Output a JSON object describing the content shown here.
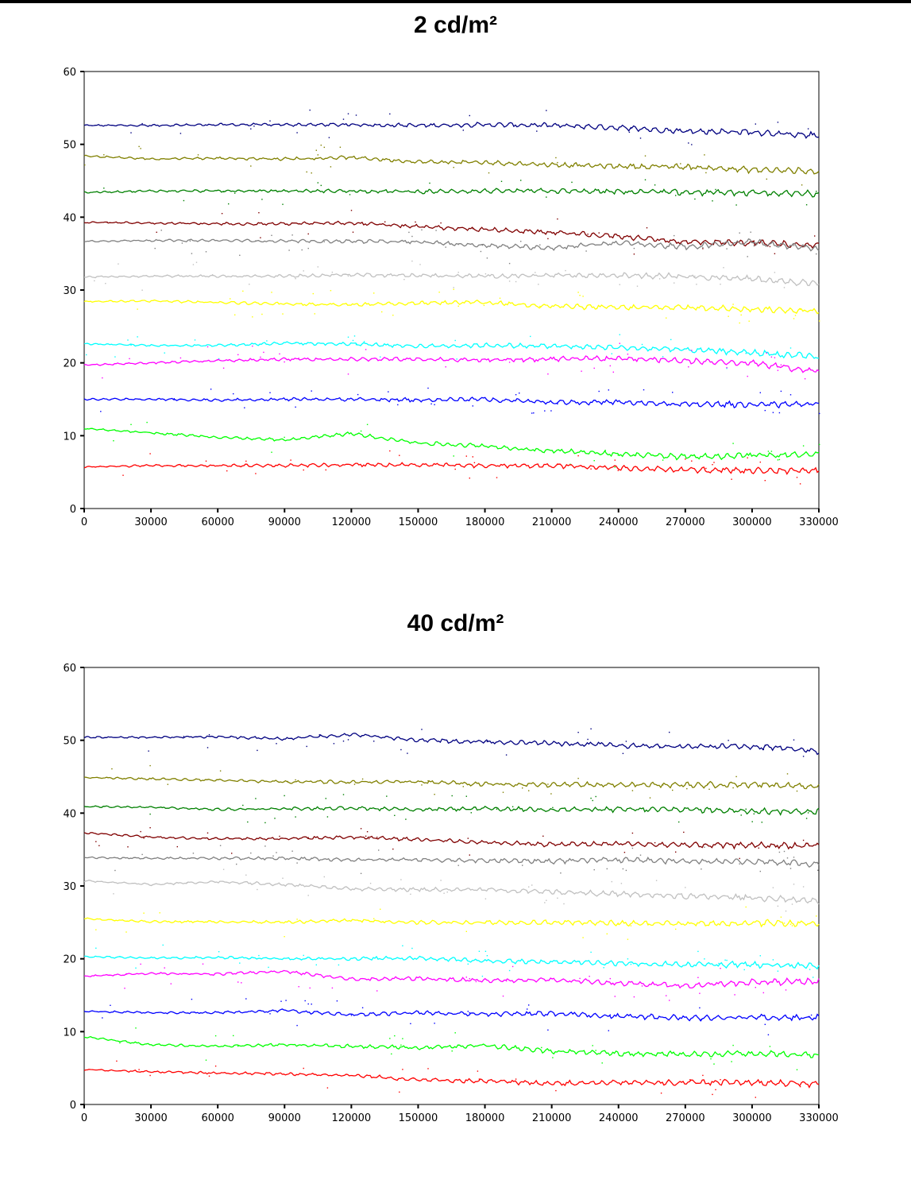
{
  "chart_data": [
    {
      "type": "line",
      "title": "2 cd/m²",
      "xlabel": "",
      "ylabel": "",
      "xlim": [
        0,
        330000
      ],
      "ylim": [
        0,
        60
      ],
      "xticks": [
        "0",
        "30000",
        "60000",
        "90000",
        "120000",
        "150000",
        "180000",
        "210000",
        "240000",
        "270000",
        "300000",
        "330000"
      ],
      "yticks": [
        "0",
        "10",
        "20",
        "30",
        "40",
        "50",
        "60"
      ],
      "grid": false,
      "x": [
        0,
        30000,
        60000,
        90000,
        120000,
        150000,
        180000,
        210000,
        240000,
        270000,
        300000,
        330000
      ],
      "series": [
        {
          "color": "#000080",
          "values": [
            52.6,
            52.6,
            52.7,
            52.7,
            52.7,
            52.6,
            52.7,
            52.6,
            52.3,
            51.8,
            51.7,
            51.2
          ]
        },
        {
          "color": "#808000",
          "values": [
            48.4,
            48.0,
            48.1,
            48.0,
            48.2,
            47.6,
            47.5,
            47.2,
            47.0,
            46.9,
            46.5,
            46.3
          ]
        },
        {
          "color": "#008000",
          "values": [
            43.4,
            43.6,
            43.6,
            43.6,
            43.6,
            43.5,
            43.6,
            43.6,
            43.5,
            43.4,
            43.3,
            43.2
          ]
        },
        {
          "color": "#800000",
          "values": [
            39.3,
            39.2,
            39.1,
            39.1,
            39.2,
            38.7,
            38.3,
            37.9,
            37.4,
            36.6,
            36.5,
            36.1
          ]
        },
        {
          "color": "#808080",
          "values": [
            36.7,
            36.8,
            36.8,
            36.7,
            36.7,
            36.6,
            36.1,
            35.8,
            36.5,
            35.9,
            36.6,
            35.6
          ]
        },
        {
          "color": "#c0c0c0",
          "values": [
            31.8,
            31.9,
            31.9,
            31.9,
            32.1,
            32.0,
            31.9,
            32.0,
            32.0,
            31.9,
            31.5,
            30.9
          ]
        },
        {
          "color": "#ffff00",
          "values": [
            28.4,
            28.5,
            28.3,
            28.1,
            28.0,
            28.2,
            28.3,
            27.8,
            27.6,
            27.6,
            27.4,
            27.1
          ]
        },
        {
          "color": "#00ffff",
          "values": [
            22.6,
            22.4,
            22.4,
            22.7,
            22.6,
            22.3,
            22.4,
            22.3,
            22.1,
            21.8,
            21.4,
            20.8
          ]
        },
        {
          "color": "#ff00ff",
          "values": [
            19.7,
            20.0,
            20.3,
            20.5,
            20.5,
            20.5,
            20.4,
            20.5,
            20.6,
            20.3,
            20.0,
            18.8
          ]
        },
        {
          "color": "#0000ff",
          "values": [
            15.0,
            15.0,
            14.9,
            15.0,
            15.0,
            14.9,
            15.0,
            14.6,
            14.6,
            14.3,
            14.3,
            14.3
          ]
        },
        {
          "color": "#00ff00",
          "values": [
            11.0,
            10.4,
            9.8,
            9.4,
            10.3,
            9.0,
            8.6,
            7.9,
            7.5,
            7.1,
            7.3,
            7.5
          ]
        },
        {
          "color": "#ff0000",
          "values": [
            5.7,
            5.9,
            5.9,
            5.9,
            6.0,
            6.0,
            5.9,
            5.9,
            5.6,
            5.3,
            5.2,
            5.2
          ]
        }
      ]
    },
    {
      "type": "line",
      "title": "40 cd/m²",
      "xlabel": "",
      "ylabel": "",
      "xlim": [
        0,
        330000
      ],
      "ylim": [
        0,
        60
      ],
      "xticks": [
        "0",
        "30000",
        "60000",
        "90000",
        "120000",
        "150000",
        "180000",
        "210000",
        "240000",
        "270000",
        "300000",
        "330000"
      ],
      "yticks": [
        "0",
        "10",
        "20",
        "30",
        "40",
        "50",
        "60"
      ],
      "grid": false,
      "x": [
        0,
        30000,
        60000,
        90000,
        120000,
        150000,
        180000,
        210000,
        240000,
        270000,
        300000,
        330000
      ],
      "series": [
        {
          "color": "#000080",
          "values": [
            50.4,
            50.4,
            50.5,
            50.2,
            50.8,
            50.0,
            49.8,
            49.6,
            49.3,
            49.1,
            49.2,
            48.5
          ]
        },
        {
          "color": "#808000",
          "values": [
            44.9,
            44.7,
            44.5,
            44.3,
            44.3,
            44.3,
            44.0,
            43.9,
            43.9,
            43.9,
            43.9,
            43.7
          ]
        },
        {
          "color": "#008000",
          "values": [
            40.9,
            40.8,
            40.5,
            40.6,
            40.7,
            40.5,
            40.6,
            40.5,
            40.5,
            40.5,
            40.3,
            40.2
          ]
        },
        {
          "color": "#800000",
          "values": [
            37.3,
            36.7,
            36.5,
            36.5,
            36.7,
            36.4,
            36.0,
            35.7,
            35.8,
            35.6,
            35.6,
            35.5
          ]
        },
        {
          "color": "#808080",
          "values": [
            33.9,
            33.8,
            33.8,
            33.8,
            33.6,
            33.6,
            33.5,
            33.4,
            33.6,
            33.4,
            33.4,
            33.0
          ]
        },
        {
          "color": "#c0c0c0",
          "values": [
            30.7,
            30.2,
            30.6,
            30.2,
            29.6,
            29.5,
            29.5,
            29.2,
            28.9,
            28.6,
            28.4,
            27.9
          ]
        },
        {
          "color": "#ffff00",
          "values": [
            25.5,
            25.1,
            25.1,
            25.0,
            25.3,
            25.0,
            25.0,
            25.0,
            24.9,
            24.8,
            24.9,
            24.9
          ]
        },
        {
          "color": "#00ffff",
          "values": [
            20.3,
            20.1,
            20.2,
            20.0,
            20.0,
            20.1,
            19.7,
            19.6,
            19.4,
            19.2,
            19.2,
            19.0
          ]
        },
        {
          "color": "#ff00ff",
          "values": [
            17.6,
            18.0,
            17.9,
            18.3,
            17.2,
            17.3,
            17.0,
            17.1,
            16.7,
            16.3,
            16.8,
            16.9
          ]
        },
        {
          "color": "#0000ff",
          "values": [
            12.8,
            12.6,
            12.6,
            12.9,
            12.3,
            12.6,
            12.4,
            12.5,
            12.1,
            11.9,
            12.0,
            11.9
          ]
        },
        {
          "color": "#00ff00",
          "values": [
            9.3,
            8.2,
            8.0,
            8.2,
            8.0,
            7.8,
            8.1,
            7.3,
            7.0,
            6.9,
            7.0,
            6.8
          ]
        },
        {
          "color": "#ff0000",
          "values": [
            4.8,
            4.5,
            4.3,
            4.2,
            4.0,
            3.4,
            3.2,
            2.9,
            3.0,
            3.0,
            3.0,
            2.8
          ]
        }
      ]
    }
  ]
}
